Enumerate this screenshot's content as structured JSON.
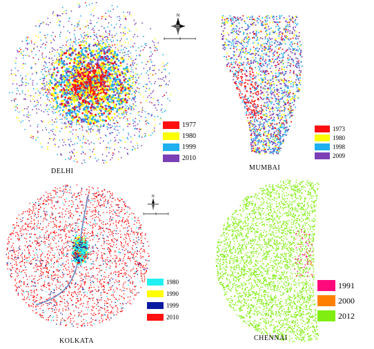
{
  "maps": [
    {
      "id": "delhi",
      "label": "DELHI",
      "legend": [
        {
          "year": "1977",
          "color": "#ff1010"
        },
        {
          "year": "1980",
          "color": "#ffff00"
        },
        {
          "year": "1999",
          "color": "#1fb0f0"
        },
        {
          "year": "2010",
          "color": "#7b3fb5"
        }
      ]
    },
    {
      "id": "mumbai",
      "label": "MUMBAI",
      "legend": [
        {
          "year": "1973",
          "color": "#ff1010"
        },
        {
          "year": "1980",
          "color": "#ffff00"
        },
        {
          "year": "1998",
          "color": "#1fb0f0"
        },
        {
          "year": "2009",
          "color": "#7b3fb5"
        }
      ]
    },
    {
      "id": "kolkata",
      "label": "KOLKATA",
      "legend": [
        {
          "year": "1980",
          "color": "#20f0f0"
        },
        {
          "year": "1990",
          "color": "#ffff00"
        },
        {
          "year": "1999",
          "color": "#0a1aa0"
        },
        {
          "year": "2010",
          "color": "#ff1010"
        }
      ]
    },
    {
      "id": "chennai",
      "label": "CHENNAI",
      "legend": [
        {
          "year": "1991",
          "color": "#ff0a7a"
        },
        {
          "year": "2000",
          "color": "#ff8000"
        },
        {
          "year": "2012",
          "color": "#80ee10"
        }
      ]
    }
  ],
  "icons": [
    "north-arrow-icon",
    "scale-bar-icon"
  ]
}
